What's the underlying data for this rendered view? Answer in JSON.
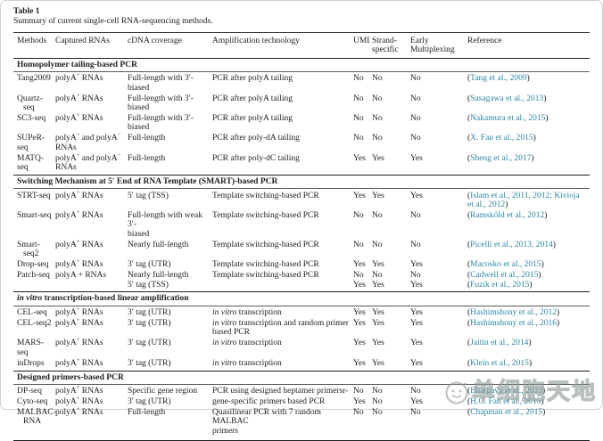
{
  "page": {
    "title": "Table 1",
    "caption": "Summary of current single-cell RNA-sequencing methods."
  },
  "colors": {
    "link": "#2b87a8",
    "text": "#1d1d1d",
    "rule": "#1f1f1f"
  },
  "watermark": {
    "logo": "cell-face-logo",
    "text": "单细胞天地"
  },
  "table": {
    "columns": [
      {
        "key": "method",
        "label": "Methods"
      },
      {
        "key": "captured-rnas",
        "label": "Captured RNAs"
      },
      {
        "key": "cdna-coverage",
        "label": "cDNA coverage"
      },
      {
        "key": "amplification-technology",
        "label": "Amplification technology"
      },
      {
        "key": "umi",
        "label": "UMI"
      },
      {
        "key": "strand-specific",
        "label": "Strand-\nspecific"
      },
      {
        "key": "early-multiplexing",
        "label": "Early\nMultiplexing"
      },
      {
        "key": "reference",
        "label": "Reference"
      }
    ],
    "sections": [
      {
        "title": "Homopolymer tailing-based PCR",
        "rows": [
          {
            "method": "Tang2009",
            "captured": "polyA^+ RNAs",
            "coverage": "Full-length with 3′-\nbiased",
            "amplification": "PCR after polyA tailing",
            "umi": "No",
            "strand": "No",
            "early": "No",
            "refs": [
              "Tang et al., 2009"
            ]
          },
          {
            "method": "Quartz-\nseq",
            "captured": "polyA^+ RNAs",
            "coverage": "Full-length with 3′-\nbiased",
            "amplification": "PCR after polyA tailing",
            "umi": "No",
            "strand": "No",
            "early": "No",
            "refs": [
              "Sasagawa et al., 2013"
            ]
          },
          {
            "method": "SC3-seq",
            "captured": "polyA^+ RNAs",
            "coverage": "Full-length with 3′-\nbiased",
            "amplification": "PCR after polyA tailing",
            "umi": "No",
            "strand": "No",
            "early": "No",
            "refs": [
              "Nakamura et al., 2015"
            ]
          },
          {
            "method": "SUPeR-seq",
            "captured": "polyA^+ and polyA^-\nRNAs",
            "coverage": "Full-length",
            "amplification": "PCR after poly-dA tailing",
            "umi": "No",
            "strand": "No",
            "early": "No",
            "refs": [
              "X. Fan et al., 2015"
            ]
          },
          {
            "method": "MATQ-seq",
            "captured": "polyA^+ and polyA^-\nRNAs",
            "coverage": "Full-length",
            "amplification": "PCR after poly-dC tailing",
            "umi": "Yes",
            "strand": "Yes",
            "early": "Yes",
            "refs": [
              "Sheng et al., 2017"
            ]
          }
        ]
      },
      {
        "title": "Switching Mechanism at 5′ End of RNA Template (SMART)-based PCR",
        "rows": [
          {
            "method": "STRT-seq",
            "captured": "polyA^+ RNAs",
            "coverage": "5′ tag (TSS)",
            "amplification": "Template switching-based PCR",
            "umi": "Yes",
            "strand": "Yes",
            "early": "Yes",
            "refs": [
              "Islam et al., 2011, 2012; Kivioja\net al., 2012"
            ]
          },
          {
            "method": "Smart-seq",
            "captured": "polyA^+ RNAs",
            "coverage": "Full-length with weak 3′-\nbiased",
            "amplification": "Template switching-based PCR",
            "umi": "No",
            "strand": "No",
            "early": "No",
            "refs": [
              "Ramsköld et al., 2012"
            ]
          },
          {
            "method": "Smart-\nseq2",
            "captured": "polyA^+ RNAs",
            "coverage": "Nearly full-length",
            "amplification": "Template switching-based PCR",
            "umi": "No",
            "strand": "No",
            "early": "No",
            "refs": [
              "Picelli et al., 2013, 2014"
            ]
          },
          {
            "method": "Drop-seq",
            "captured": "polyA^+ RNAs",
            "coverage": "3′ tag (UTR)",
            "amplification": "Template switching-based PCR",
            "umi": "Yes",
            "strand": "Yes",
            "early": "Yes",
            "refs": [
              "Macosko et al., 2015"
            ]
          },
          {
            "method": "Patch-seq",
            "captured": "polyA + RNAs",
            "coverage": "Nearly full-length\n5′ tag (TSS)",
            "amplification": "Template switching-based PCR",
            "umi": "No\nYes",
            "strand": "No\nYes",
            "early": "No\nYes",
            "refs": [
              "Cadwell et al., 2015",
              "Fuzik et al., 2015"
            ]
          }
        ]
      },
      {
        "title": "in vitro transcription-based linear amplification",
        "rows": [
          {
            "method": "CEL-seq",
            "captured": "polyA^+ RNAs",
            "coverage": "3′ tag (UTR)",
            "amplification": "in vitro transcription",
            "umi": "Yes",
            "strand": "Yes",
            "early": "Yes",
            "refs": [
              "Hashimshony et al., 2012"
            ]
          },
          {
            "method": "CEL-seq2",
            "captured": "polyA^+ RNAs",
            "coverage": "3′ tag (UTR)",
            "amplification": "in vitro transcription and random primer\nbased PCR",
            "umi": "Yes",
            "strand": "Yes",
            "early": "Yes",
            "refs": [
              "Hashimshony et al., 2016"
            ]
          },
          {
            "method": "MARS-seq",
            "captured": "polyA^+ RNAs",
            "coverage": "3′ tag (UTR)",
            "amplification": "in vitro transcription",
            "umi": "Yes",
            "strand": "Yes",
            "early": "Yes",
            "refs": [
              "Jaitin et al., 2014"
            ]
          },
          {
            "method": "inDrops",
            "captured": "polyA^+ RNAs",
            "coverage": "3′ tag (UTR)",
            "amplification": "in vitro transcription",
            "umi": "Yes",
            "strand": "Yes",
            "early": "Yes",
            "refs": [
              "Klein et al., 2015"
            ]
          }
        ]
      },
      {
        "title": "Designed primers-based PCR",
        "rows": [
          {
            "method": "DP-seq",
            "captured": "polyA^+ RNAs",
            "coverage": "Specific gene region",
            "amplification": "PCR using designed heptamer primersr-",
            "umi": "No",
            "strand": "No",
            "early": "No",
            "refs": [
              "Bhargava et al., 2013"
            ]
          },
          {
            "method": "Cyto-seq",
            "captured": "polyA^+ RNAs",
            "coverage": "3′ tag (UTR)",
            "amplification": "gene-specific primers based PCR",
            "umi": "Yes",
            "strand": "No",
            "early": "Yes",
            "refs": [
              "H.C. Fan et al., 2015"
            ]
          },
          {
            "method": "MALBAC-\nRNA",
            "captured": "polyA^+ RNAs",
            "coverage": "Full-length",
            "amplification": "Quasilinear PCR with 7 random MALBAC\nprimers",
            "umi": "No",
            "strand": "No",
            "early": "No",
            "refs": [
              "Chapman et al., 2015"
            ]
          }
        ]
      }
    ]
  }
}
